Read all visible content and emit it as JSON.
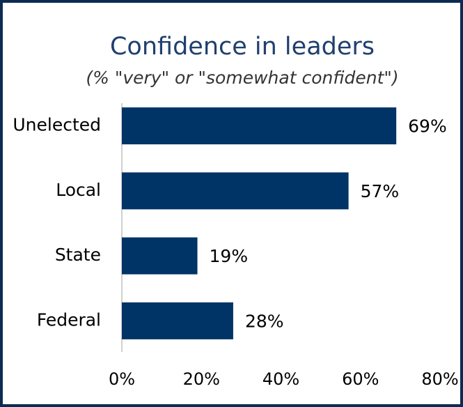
{
  "chart_data": {
    "type": "bar",
    "orientation": "horizontal",
    "title": "Confidence in leaders",
    "subtitle": "(% \"very\" or \"somewhat confident\")",
    "categories": [
      "Unelected",
      "Local",
      "State",
      "Federal"
    ],
    "values": [
      69,
      57,
      19,
      28
    ],
    "value_labels": [
      "69%",
      "57%",
      "19%",
      "28%"
    ],
    "color": "#003366",
    "xlim": [
      0,
      80
    ],
    "xticks": [
      {
        "value": 0,
        "label": "0%"
      },
      {
        "value": 20,
        "label": "20%"
      },
      {
        "value": 40,
        "label": "40%"
      },
      {
        "value": 60,
        "label": "60%"
      },
      {
        "value": 80,
        "label": "80%"
      }
    ],
    "grid": false
  }
}
